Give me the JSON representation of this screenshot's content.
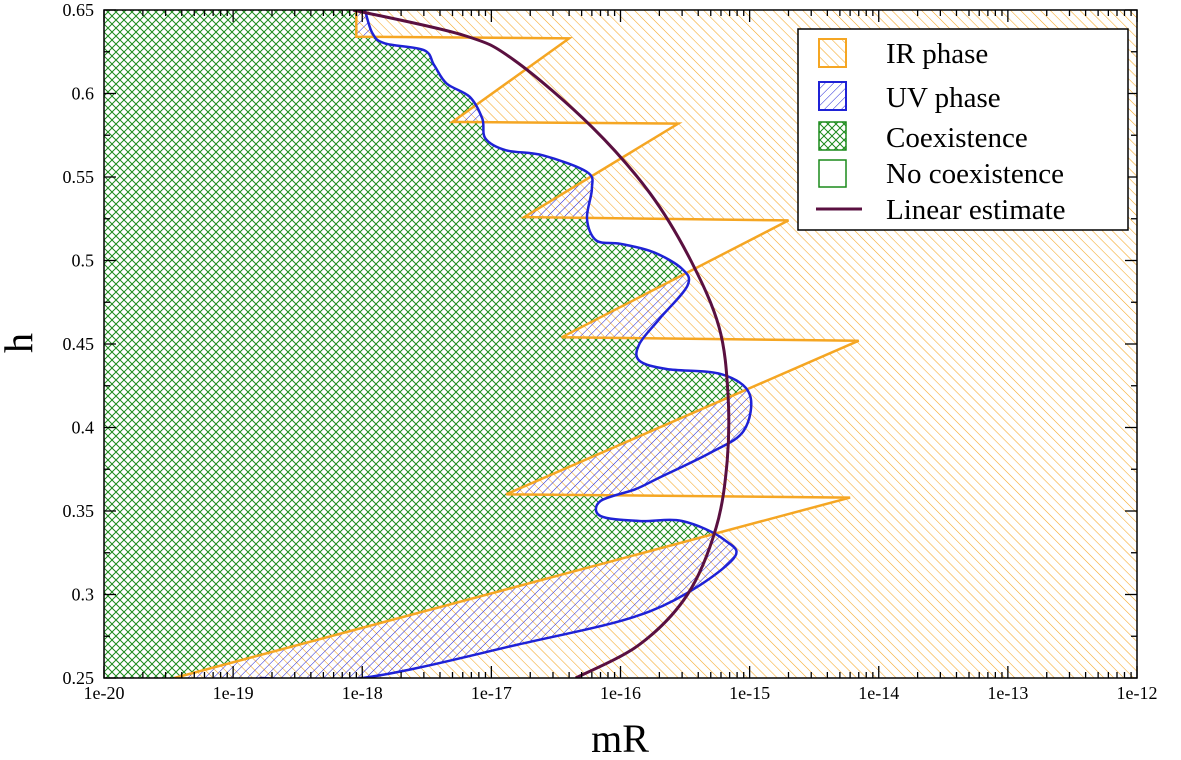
{
  "chart_data": {
    "type": "area",
    "xlabel": "mR",
    "ylabel": "h",
    "x_scale": "log",
    "xlim": [
      1e-20,
      1e-12
    ],
    "ylim": [
      0.25,
      0.65
    ],
    "grid": false,
    "legend_position": "top-right",
    "x_tick_labels": [
      "1e-20",
      "1e-19",
      "1e-18",
      "1e-17",
      "1e-16",
      "1e-15",
      "1e-14",
      "1e-13",
      "1e-12"
    ],
    "y_tick_labels": [
      "0.25",
      "0.3",
      "0.35",
      "0.4",
      "0.45",
      "0.5",
      "0.55",
      "0.6",
      "0.65"
    ],
    "colors": {
      "ir": "#f5a623",
      "uv": "#1f22d6",
      "coexistence": "#1a8a1a",
      "linear": "#5a1040"
    },
    "legend": [
      {
        "label": "IR phase",
        "symbol": "ir"
      },
      {
        "label": "UV phase",
        "symbol": "uv"
      },
      {
        "label": "Coexistence",
        "symbol": "coexistence"
      },
      {
        "label": "No coexistence",
        "symbol": "none"
      },
      {
        "label": "Linear estimate",
        "symbol": "line"
      }
    ],
    "series": [
      {
        "name": "UV phase",
        "points": [
          [
            1.6e-19,
            0.25
          ],
          [
            1e-18,
            0.25
          ],
          [
            1.6e-17,
            0.27
          ],
          [
            1.7e-16,
            0.29
          ],
          [
            7.2e-16,
            0.32
          ],
          [
            6.3e-16,
            0.333
          ],
          [
            3e-16,
            0.344
          ],
          [
            1.4e-16,
            0.344
          ],
          [
            7e-17,
            0.347
          ],
          [
            7e-17,
            0.356
          ],
          [
            1.3e-16,
            0.363
          ],
          [
            2e-16,
            0.37
          ],
          [
            5e-16,
            0.385
          ],
          [
            9e-16,
            0.398
          ],
          [
            1e-15,
            0.42
          ],
          [
            6e-16,
            0.432
          ],
          [
            2.3e-16,
            0.435
          ],
          [
            1.4e-16,
            0.44
          ],
          [
            1.4e-16,
            0.45
          ],
          [
            2e-16,
            0.465
          ],
          [
            3.3e-16,
            0.485
          ],
          [
            3e-16,
            0.495
          ],
          [
            1.8e-16,
            0.505
          ],
          [
            1e-16,
            0.51
          ],
          [
            6.5e-17,
            0.512
          ],
          [
            5.5e-17,
            0.525
          ],
          [
            6e-17,
            0.543
          ],
          [
            5.5e-17,
            0.553
          ],
          [
            2.5e-17,
            0.563
          ],
          [
            1.3e-17,
            0.566
          ],
          [
            9e-18,
            0.573
          ],
          [
            8.5e-18,
            0.585
          ],
          [
            6.8e-18,
            0.598
          ],
          [
            4.5e-18,
            0.606
          ],
          [
            3.6e-18,
            0.617
          ],
          [
            3e-18,
            0.626
          ],
          [
            1.5e-18,
            0.63
          ],
          [
            1.2e-18,
            0.636
          ],
          [
            1.05e-18,
            0.65
          ]
        ]
      },
      {
        "name": "IR phase",
        "points": [
          [
            9e-19,
            0.65
          ],
          [
            9e-19,
            0.634
          ],
          [
            4e-17,
            0.633
          ],
          [
            5e-18,
            0.583
          ],
          [
            2.8e-16,
            0.582
          ],
          [
            1.8e-17,
            0.526
          ],
          [
            2e-15,
            0.524
          ],
          [
            3.5e-17,
            0.454
          ],
          [
            7e-15,
            0.452
          ],
          [
            1.3e-17,
            0.36
          ],
          [
            6e-15,
            0.358
          ],
          [
            3.5e-20,
            0.25
          ]
        ]
      },
      {
        "name": "Linear estimate",
        "points": [
          [
            4.5e-17,
            0.25
          ],
          [
            1.4e-16,
            0.27
          ],
          [
            3.3e-16,
            0.3
          ],
          [
            5.5e-16,
            0.34
          ],
          [
            6.7e-16,
            0.38
          ],
          [
            6.8e-16,
            0.42
          ],
          [
            5.8e-16,
            0.46
          ],
          [
            3.5e-16,
            0.5
          ],
          [
            1.7e-16,
            0.54
          ],
          [
            6e-17,
            0.58
          ],
          [
            1.5e-17,
            0.62
          ],
          [
            6e-18,
            0.635
          ],
          [
            8.5e-19,
            0.65
          ]
        ]
      }
    ]
  }
}
